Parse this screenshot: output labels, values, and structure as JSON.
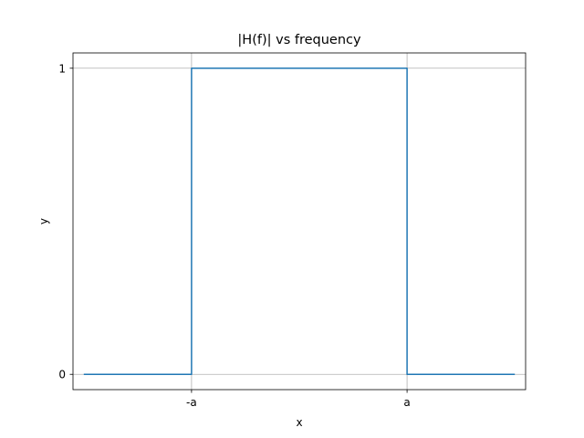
{
  "chart_data": {
    "type": "line",
    "title": "|H(f)| vs frequency",
    "xlabel": "x",
    "ylabel": "y",
    "x_ticks": [
      {
        "value": -1,
        "label": "-a"
      },
      {
        "value": 1,
        "label": "a"
      }
    ],
    "y_ticks": [
      {
        "value": 0,
        "label": "0"
      },
      {
        "value": 1,
        "label": "1"
      }
    ],
    "xlim": [
      -2.1,
      2.1
    ],
    "ylim": [
      -0.05,
      1.05
    ],
    "grid": true,
    "series": [
      {
        "color": "#1f77b4",
        "x": [
          -2,
          -1,
          -1,
          1,
          1,
          2
        ],
        "y": [
          0,
          0,
          1,
          1,
          0,
          0
        ]
      }
    ]
  }
}
